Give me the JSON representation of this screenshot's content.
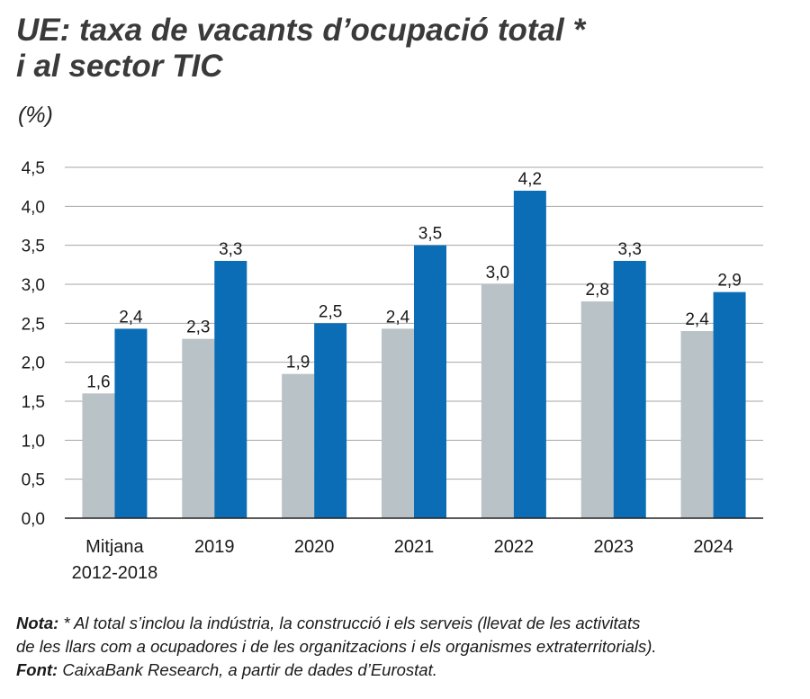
{
  "title_lines": [
    "UE: taxa de vacants d’ocupació total *",
    "i al sector TIC"
  ],
  "unit": "(%)",
  "colors": {
    "total": "#b9c2c6",
    "tic": "#0a6db5",
    "grid": "#a6a6a6",
    "axis": "#222222"
  },
  "chart_data": {
    "type": "bar",
    "title": "UE: taxa de vacants d’ocupació total * i al sector TIC",
    "ylabel": "(%)",
    "ylim": [
      0,
      4.5
    ],
    "yticks": [
      "0,0",
      "0,5",
      "1,0",
      "1,5",
      "2,0",
      "2,5",
      "3,0",
      "3,5",
      "4,0",
      "4,5"
    ],
    "ytick_values": [
      0,
      0.5,
      1,
      1.5,
      2,
      2.5,
      3,
      3.5,
      4,
      4.5
    ],
    "grid": true,
    "categories": [
      [
        "Mitjana",
        "2012-2018"
      ],
      [
        "2019"
      ],
      [
        "2020"
      ],
      [
        "2021"
      ],
      [
        "2022"
      ],
      [
        "2023"
      ],
      [
        "2024"
      ]
    ],
    "series": [
      {
        "name": "Total",
        "values": [
          1.6,
          2.3,
          1.85,
          2.43,
          3.0,
          2.78,
          2.4
        ],
        "labels": [
          "1,6",
          "2,3",
          "1,9",
          "2,4",
          "3,0",
          "2,8",
          "2,4"
        ]
      },
      {
        "name": "Sector TIC",
        "values": [
          2.43,
          3.3,
          2.5,
          3.5,
          4.2,
          3.3,
          2.9
        ],
        "labels": [
          "2,4",
          "3,3",
          "2,5",
          "3,5",
          "4,2",
          "3,3",
          "2,9"
        ]
      }
    ]
  },
  "notes": {
    "nota_label": "Nota:",
    "nota_line1": " * Al total s’inclou la indústria, la construcció i els serveis (llevat de les activitats",
    "nota_line2": "de les llars com a ocupadores i de les organitzacions i els organismes extraterritorials).",
    "font_label": "Font:",
    "font_text": " CaixaBank Research, a partir de dades d’Eurostat."
  }
}
